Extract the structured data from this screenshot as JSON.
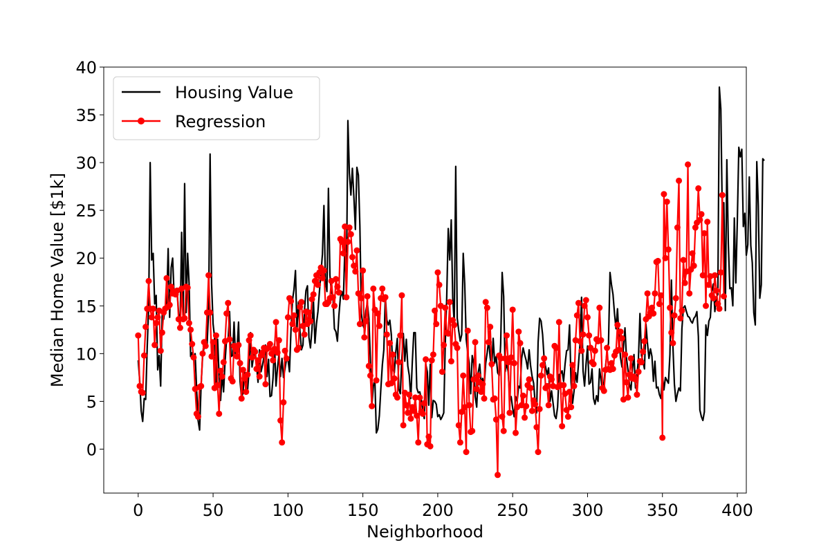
{
  "colors": {
    "housing_line": "#000000",
    "regression_line": "#ff0000",
    "axes": "#000000",
    "background": "#ffffff"
  },
  "chart_data": {
    "type": "line",
    "title": "",
    "xlabel": "Neighborhood",
    "ylabel": "Median Home Value [$1k]",
    "xlim": [
      -23,
      406
    ],
    "ylim": [
      -4.6,
      40
    ],
    "xticks": [
      0,
      50,
      100,
      150,
      200,
      250,
      300,
      350,
      400
    ],
    "yticks": [
      0,
      5,
      10,
      15,
      20,
      25,
      30,
      35,
      40
    ],
    "grid": false,
    "legend": "upper-left",
    "series": [
      {
        "name": "Housing Value",
        "color": "#000000",
        "marker": "none",
        "x_start": 0,
        "values": [
          9.3,
          7.2,
          4.0,
          2.9,
          5.3,
          5.2,
          10.6,
          15.0,
          30.0,
          19.8,
          20.5,
          15.2,
          16.1,
          8.3,
          9.8,
          6.6,
          14.0,
          13.6,
          14.9,
          15.1,
          21.0,
          13.8,
          19.0,
          20.0,
          16.0,
          16.2,
          16.5,
          14.2,
          13.0,
          22.7,
          13.8,
          27.8,
          14.3,
          20.5,
          17.3,
          9.7,
          10.1,
          9.6,
          10.0,
          6.3,
          3.0,
          2.0,
          6.7,
          9.7,
          10.7,
          10.8,
          11.0,
          14.4,
          30.9,
          17.3,
          13.1,
          11.7,
          6.3,
          11.5,
          7.7,
          5.1,
          7.9,
          6.0,
          9.2,
          11.5,
          11.3,
          14.4,
          9.7,
          9.8,
          13.3,
          9.5,
          10.4,
          13.3,
          7.1,
          5.4,
          5.9,
          8.3,
          6.6,
          6.1,
          8.2,
          12.2,
          8.6,
          9.7,
          10.4,
          8.8,
          7.0,
          10.4,
          8.1,
          8.8,
          9.7,
          10.9,
          7.6,
          9.4,
          5.5,
          5.6,
          7.4,
          11.0,
          6.6,
          8.5,
          9.9,
          7.6,
          9.5,
          7.5,
          8.4,
          9.4,
          9.4,
          8.1,
          12.4,
          15.6,
          16.7,
          18.7,
          12.5,
          15.4,
          12.4,
          10.4,
          10.9,
          14.5,
          16.6,
          17.1,
          11.7,
          10.6,
          12.5,
          15.6,
          11.1,
          13.1,
          14.4,
          16.5,
          18.4,
          20.4,
          25.5,
          17.6,
          16.5,
          27.3,
          18.2,
          16.4,
          16.1,
          12.6,
          12.3,
          11.3,
          14.0,
          15.9,
          16.5,
          15.7,
          21.2,
          17.1,
          34.4,
          28.9,
          26.6,
          29.4,
          26.4,
          23.0,
          29.5,
          28.7,
          23.4,
          14.2,
          13.0,
          12.6,
          14.5,
          15.3,
          13.7,
          9.4,
          4.6,
          6.6,
          7.3,
          1.7,
          2.1,
          3.5,
          6.3,
          8.8,
          10.4,
          16.0,
          13.5,
          13.0,
          13.5,
          12.0,
          8.4,
          8.0,
          10.2,
          11.6,
          6.3,
          5.8,
          9.4,
          12.1,
          9.2,
          11.5,
          8.7,
          7.7,
          5.3,
          9.1,
          12.2,
          12.2,
          6.4,
          5.9,
          6.0,
          5.2,
          4.2,
          3.2,
          8.9,
          8.1,
          4.6,
          8.9,
          3.3,
          5.1,
          5.0,
          4.7,
          3.4,
          3.6,
          3.1,
          3.4,
          3.8,
          11.0,
          16.0,
          23.1,
          19.8,
          24.0,
          15.8,
          13.2,
          29.6,
          13.7,
          12.4,
          11.3,
          12.0,
          20.5,
          17.3,
          11.5,
          10.1,
          9.0,
          5.8,
          9.8,
          9.0,
          5.5,
          4.4,
          8.0,
          8.9,
          6.9,
          7.4,
          6.6,
          9.0,
          10.1,
          11.4,
          9.6,
          8.5,
          11.6,
          9.0,
          9.7,
          8.0,
          7.7,
          11.0,
          18.5,
          16.0,
          8.1,
          9.0,
          8.1,
          5.5,
          5.5,
          4.3,
          3.4,
          5.5,
          5.0,
          6.6,
          6.4,
          9.5,
          10.6,
          9.9,
          9.3,
          8.4,
          10.4,
          8.7,
          7.6,
          6.9,
          4.9,
          3.8,
          11.2,
          13.7,
          13.4,
          12.0,
          9.5,
          8.6,
          7.8,
          8.5,
          5.0,
          6.1,
          4.8,
          3.5,
          3.2,
          4.4,
          7.8,
          7.9,
          8.2,
          7.1,
          8.9,
          10.3,
          10.4,
          13.0,
          7.0,
          4.8,
          6.1,
          8.0,
          7.0,
          9.0,
          11.1,
          15.9,
          8.2,
          6.6,
          8.9,
          10.8,
          6.8,
          7.0,
          8.4,
          5.3,
          4.7,
          5.6,
          5.0,
          8.4,
          7.3,
          5.9,
          7.1,
          8.6,
          10.2,
          11.1,
          18.5,
          17.2,
          16.2,
          14.2,
          12.6,
          14.7,
          11.7,
          9.6,
          8.6,
          10.7,
          12.7,
          9.5,
          8.3,
          6.8,
          6.2,
          8.4,
          9.9,
          6.4,
          7.7,
          9.5,
          14.2,
          9.8,
          9.2,
          8.4,
          13.1,
          11.1,
          9.5,
          10.5,
          9.7,
          7.1,
          9.2,
          6.4,
          6.5,
          5.7,
          5.3,
          7.7,
          6.2,
          7.5,
          7.2,
          6.9,
          9.9,
          17.7,
          10.8,
          6.8,
          5.0,
          5.8,
          6.4,
          6.1,
          12.6,
          14.8,
          15.0,
          14.4,
          13.9,
          13.8,
          13.4,
          13.2,
          13.7,
          13.9,
          14.4,
          11.8,
          4.1,
          3.4,
          3.0,
          3.9,
          13.0,
          11.9,
          13.4,
          13.8,
          16.5,
          17.3,
          14.4,
          15.9,
          16.2,
          37.9,
          35.6,
          24.1,
          25.8,
          14.5,
          30.3,
          21.5,
          16.8,
          16.9,
          15.0,
          24.2,
          17.4,
          23.9,
          31.6,
          30.6,
          31.4,
          23.3,
          24.7,
          20.3,
          21.4,
          28.5,
          21.3,
          19.5,
          14.3,
          13.0,
          30.1,
          25.5,
          15.8,
          17.2,
          30.4,
          30.2
        ]
      },
      {
        "name": "Regression",
        "color": "#ff0000",
        "marker": "circle",
        "x_start": 0,
        "values": [
          11.9,
          6.6,
          6.0,
          5.9,
          9.8,
          12.8,
          14.7,
          17.6,
          14.7,
          13.8,
          14.7,
          10.9,
          13.2,
          13.8,
          14.5,
          10.3,
          12.2,
          14.3,
          14.7,
          17.9,
          14.9,
          15.1,
          17.0,
          16.3,
          16.5,
          16.2,
          16.6,
          13.6,
          12.7,
          16.8,
          13.6,
          13.7,
          17.0,
          16.9,
          13.2,
          12.5,
          11.0,
          9.6,
          6.3,
          3.7,
          3.4,
          6.5,
          6.6,
          10.0,
          11.2,
          10.8,
          14.3,
          18.2,
          14.3,
          9.7,
          11.2,
          6.4,
          11.9,
          6.7,
          3.7,
          8.2,
          7.6,
          9.1,
          11.3,
          14.2,
          15.3,
          11.5,
          7.4,
          7.1,
          10.8,
          10.5,
          9.7,
          10.9,
          9.0,
          5.3,
          8.3,
          7.4,
          6.0,
          7.8,
          11.4,
          11.9,
          9.6,
          10.4,
          10.2,
          8.4,
          9.3,
          7.6,
          9.8,
          10.1,
          10.6,
          6.8,
          10.5,
          10.6,
          11.0,
          10.0,
          9.3,
          10.5,
          13.3,
          10.1,
          11.4,
          3.0,
          0.7,
          4.9,
          10.3,
          9.5,
          13.8,
          15.8,
          15.5,
          13.1,
          14.0,
          12.5,
          10.4,
          10.6,
          14.9,
          15.4,
          12.9,
          12.0,
          14.4,
          13.1,
          14.3,
          13.4,
          15.7,
          16.2,
          17.6,
          18.2,
          17.2,
          18.5,
          19.0,
          17.9,
          18.7,
          15.2,
          15.2,
          15.4,
          15.8,
          17.6,
          15.9,
          15.0,
          17.8,
          17.0,
          16.4,
          22.0,
          21.7,
          20.5,
          23.3,
          15.9,
          21.7,
          23.2,
          22.5,
          20.1,
          19.2,
          18.6,
          20.8,
          16.3,
          13.1,
          15.8,
          18.7,
          11.7,
          13.4,
          16.0,
          8.7,
          7.7,
          4.5,
          16.8,
          14.6,
          7.2,
          14.2,
          12.9,
          15.8,
          16.8,
          15.7,
          15.9,
          12.0,
          6.8,
          11.1,
          6.9,
          9.9,
          7.4,
          5.7,
          5.4,
          9.1,
          11.9,
          16.1,
          2.5,
          5.9,
          4.6,
          3.8,
          5.7,
          3.2,
          4.4,
          4.0,
          5.4,
          3.5,
          0.7,
          5.4,
          3.9,
          3.7,
          4.8,
          9.4,
          0.5,
          1.3,
          0.3,
          9.3,
          9.9,
          14.5,
          13.1,
          18.5,
          17.2,
          15.0,
          8.1,
          10.9,
          14.8,
          12.2,
          12.1,
          15.4,
          9.2,
          13.5,
          13.0,
          11.0,
          10.6,
          2.5,
          0.7,
          3.9,
          7.7,
          4.4,
          -0.3,
          12.4,
          4.6,
          1.8,
          1.9,
          7.3,
          11.2,
          6.3,
          7.7,
          7.0,
          6.0,
          6.8,
          5.3,
          15.4,
          14.8,
          11.2,
          12.8,
          8.9,
          5.2,
          5.3,
          3.1,
          -2.7,
          9.8,
          9.5,
          3.4,
          1.9,
          9.5,
          11.9,
          9.1,
          3.8,
          9.6,
          14.6,
          9.0,
          1.7,
          4.4,
          12.3,
          11.1,
          4.6,
          5.6,
          3.3,
          4.5,
          6.7,
          7.3,
          6.4,
          4.0,
          5.1,
          4.7,
          2.3,
          -0.3,
          4.2,
          7.7,
          8.8,
          9.5,
          6.4,
          6.6,
          4.6,
          7.6,
          7.3,
          6.6,
          10.8,
          10.6,
          6.5,
          13.3,
          6.7,
          2.4,
          6.7,
          5.8,
          4.1,
          3.4,
          6.0,
          4.4,
          8.8,
          6.6,
          11.4,
          14.0,
          15.3,
          11.3,
          10.3,
          12.0,
          15.0,
          15.6,
          13.8,
          11.9,
          10.6,
          9.1,
          8.9,
          10.3,
          11.5,
          11.3,
          14.8,
          11.4,
          6.4,
          6.1,
          8.3,
          10.6,
          8.4,
          8.3,
          9.0,
          8.4,
          9.8,
          10.2,
          13.0,
          10.4,
          12.3,
          11.6,
          5.2,
          9.9,
          7.0,
          5.4,
          7.8,
          9.5,
          7.4,
          7.6,
          7.3,
          5.7,
          8.1,
          9.2,
          9.1,
          10.2,
          11.3,
          13.6,
          16.3,
          13.9,
          14.3,
          14.8,
          14.2,
          16.3,
          19.6,
          19.7,
          15.2,
          16.1,
          1.2,
          26.7,
          20.0,
          25.9,
          20.9,
          14.8,
          12.2,
          11.1,
          14.0,
          15.8,
          23.2,
          28.1,
          13.7,
          14.5,
          19.8,
          17.4,
          18.6,
          29.8,
          16.3,
          18.8,
          20.5,
          19.2,
          23.2,
          23.7,
          27.3,
          24.0,
          24.6,
          18.2,
          22.6,
          15.0,
          23.8,
          17.2,
          18.1,
          16.1,
          15.8,
          18.2,
          16.6,
          15.2,
          14.7,
          18.5,
          26.6,
          16.0
        ]
      }
    ]
  }
}
